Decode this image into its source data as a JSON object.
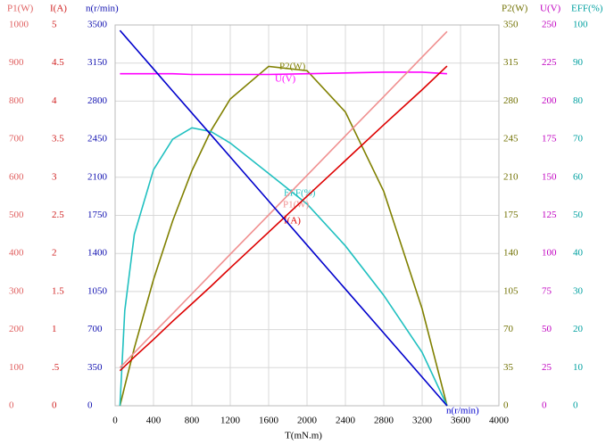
{
  "chart_data": {
    "type": "line",
    "xlabel": "T(mN.m)",
    "xlim": [
      0,
      4000
    ],
    "xticks": [
      0,
      400,
      800,
      1200,
      1600,
      2000,
      2400,
      2800,
      3200,
      3600,
      4000
    ],
    "grid": true,
    "axes": [
      {
        "label": "P1(W)",
        "color": "#e06060",
        "side": "left",
        "ylim": [
          0,
          1000
        ],
        "yticks": [
          0,
          100,
          200,
          300,
          400,
          500,
          600,
          700,
          800,
          900,
          1000
        ]
      },
      {
        "label": "I(A)",
        "color": "#d02020",
        "side": "left",
        "ylim": [
          0,
          5
        ],
        "yticks": [
          0,
          {
            "value": 0.5,
            "label": ".5"
          },
          1,
          1.5,
          2,
          2.5,
          3,
          3.5,
          4,
          4.5,
          5
        ]
      },
      {
        "label": "n(r/min)",
        "color": "#1010b0",
        "side": "left",
        "ylim": [
          0,
          3500
        ],
        "yticks": [
          0,
          350,
          700,
          1050,
          1400,
          1750,
          2100,
          2450,
          2800,
          3150,
          3500
        ]
      },
      {
        "label": "P2(W)",
        "color": "#707000",
        "side": "right",
        "ylim": [
          0,
          350
        ],
        "yticks": [
          0,
          35,
          70,
          105,
          140,
          175,
          210,
          245,
          280,
          315,
          350
        ]
      },
      {
        "label": "U(V)",
        "color": "#c000c0",
        "side": "right",
        "ylim": [
          0,
          250
        ],
        "yticks": [
          0,
          25,
          50,
          75,
          100,
          125,
          150,
          175,
          200,
          225,
          250
        ]
      },
      {
        "label": "EFF(%)",
        "color": "#00a0a0",
        "side": "right",
        "ylim": [
          0,
          100
        ],
        "yticks": [
          0,
          10,
          20,
          30,
          40,
          50,
          60,
          70,
          80,
          90,
          100
        ]
      }
    ],
    "x": [
      50,
      100,
      200,
      400,
      600,
      800,
      1000,
      1200,
      1600,
      2000,
      2400,
      2800,
      3200,
      3460
    ],
    "series": [
      {
        "name": "P2(W)",
        "axis": 3,
        "color": "#808000",
        "values": [
          0,
          18,
          53,
          116,
          170,
          216,
          253,
          282,
          312,
          308,
          270,
          197,
          89,
          0
        ]
      },
      {
        "name": "U(V)",
        "axis": 4,
        "color": "#ff00ff",
        "values": [
          218,
          218,
          218,
          218,
          218,
          217.5,
          217.5,
          217.5,
          217.5,
          218,
          218.5,
          219,
          219,
          218
        ]
      },
      {
        "name": "EFF(%)",
        "axis": 5,
        "color": "#20c0c0",
        "values": [
          0,
          25,
          45,
          62,
          70,
          73,
          72,
          69,
          61,
          53,
          42,
          29,
          14,
          0
        ]
      },
      {
        "name": "P1(W)",
        "axis": 0,
        "color": "#f09090",
        "values": [
          100,
          113,
          139,
          191,
          242,
          294,
          346,
          398,
          501,
          605,
          709,
          812,
          916,
          983
        ]
      },
      {
        "name": "I(A)",
        "axis": 1,
        "color": "#dd0000",
        "values": [
          0.46,
          0.52,
          0.64,
          0.87,
          1.11,
          1.34,
          1.57,
          1.81,
          2.28,
          2.75,
          3.22,
          3.69,
          4.15,
          4.46
        ]
      },
      {
        "name": "n(r/min)",
        "axis": 2,
        "color": "#0000cc",
        "values": [
          3450,
          3399,
          3298,
          3096,
          2893,
          2691,
          2489,
          2287,
          1882,
          1477,
          1072,
          668,
          263,
          0
        ]
      }
    ]
  }
}
